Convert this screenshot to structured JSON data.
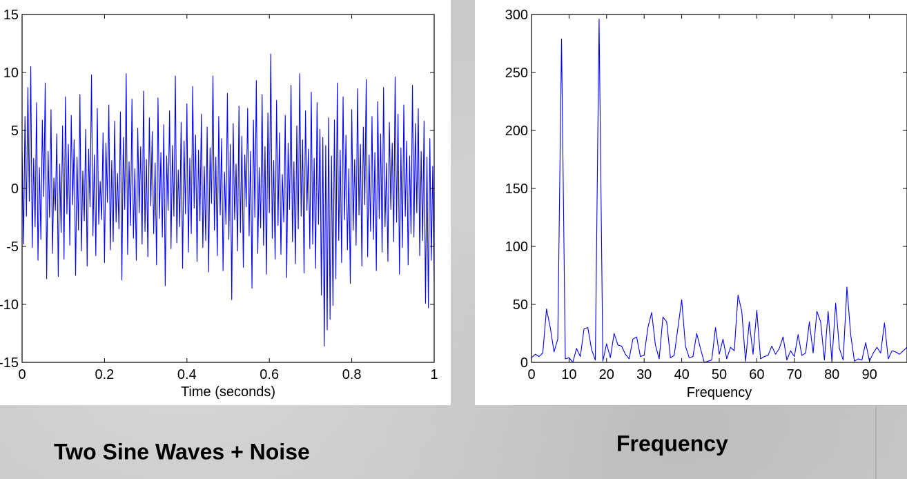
{
  "captions": {
    "left": "Two Sine Waves + Noise",
    "right": "Frequency"
  },
  "chart_data": [
    {
      "type": "line",
      "title": "",
      "xlabel": "Time (seconds)",
      "ylabel": "",
      "xlim": [
        0,
        1
      ],
      "ylim": [
        -15,
        15
      ],
      "x_ticks": [
        0,
        0.2,
        0.4,
        0.6,
        0.8,
        1
      ],
      "x_tick_labels": [
        "0",
        "0.2",
        "0.4",
        "0.6",
        "0.8",
        "1"
      ],
      "y_ticks": [
        -15,
        -10,
        -5,
        0,
        5,
        10,
        15
      ],
      "y_tick_labels": [
        "-15",
        "-10",
        "-5",
        "0",
        "5",
        "10",
        "15"
      ],
      "series": [
        {
          "color": "#0000ff",
          "x_start": 0,
          "x_end": 1,
          "values": [
            3.5,
            -4.8,
            6.2,
            -2.4,
            8.7,
            -1.1,
            10.5,
            -5.1,
            2.6,
            -3.3,
            7.4,
            -6.2,
            1.8,
            -4.4,
            5.9,
            -0.7,
            9.1,
            -7.8,
            3.2,
            -2.5,
            6.8,
            -5.6,
            0.9,
            -1.9,
            4.7,
            -7.6,
            2.1,
            -3.8,
            5.4,
            -6.1,
            7.9,
            -2.2,
            3.8,
            -4.9,
            6.3,
            -1.4,
            4.2,
            -7.5,
            2.7,
            -3.6,
            8.1,
            -5.4,
            1.5,
            -2.8,
            5.1,
            -6.7,
            3.4,
            -1.6,
            9.8,
            -4.1,
            2.9,
            -5.8,
            6.9,
            -3.1,
            0.6,
            -2.7,
            4.8,
            -6.4,
            3.9,
            -1.2,
            7.2,
            -5.3,
            2.4,
            -4.6,
            5.8,
            -2.9,
            1.3,
            -3.5,
            6.6,
            -7.9,
            4.4,
            -1.8,
            9.9,
            -5.7,
            2.3,
            -3.2,
            7.7,
            -4.3,
            1.7,
            -6.2,
            5.2,
            -2.1,
            3.6,
            -4.8,
            8.4,
            -3.7,
            2.5,
            -5.9,
            6.1,
            -1.5,
            4.9,
            -3.9,
            2.2,
            -6.6,
            7.8,
            -2.6,
            3.1,
            -4.2,
            5.5,
            -8.4,
            2.8,
            -1.9,
            6.7,
            -5.2,
            3.7,
            -2.4,
            9.7,
            -4.7,
            1.6,
            -3.3,
            5.7,
            -6.9,
            4.1,
            -2.2,
            7.3,
            -5.5,
            2.6,
            -3.9,
            8.8,
            -1.7,
            4.6,
            -6.3,
            3.3,
            -2.8,
            6.4,
            -5.1,
            1.9,
            -4.5,
            5.3,
            -7.2,
            3.5,
            -1.3,
            9.7,
            -3.6,
            2.7,
            -5.8,
            6.2,
            -2.3,
            4.3,
            -7.1,
            1.4,
            -3.1,
            8.2,
            -4.4,
            3.8,
            -9.6,
            5.6,
            -2.7,
            2.1,
            -5.4,
            7.1,
            -3.8,
            4.5,
            -6.8,
            2.9,
            -1.6,
            6.9,
            -4.1,
            3.2,
            -8.6,
            5.9,
            -2.5,
            9.3,
            -5.6,
            1.8,
            -3.4,
            8.1,
            -4.9,
            3.6,
            -7.4,
            6.5,
            -2.1,
            11.6,
            -4.3,
            2.4,
            -6.1,
            7.6,
            -3.2,
            4.8,
            -5.7,
            1.2,
            -2.9,
            6.3,
            -7.7,
            3.9,
            -1.8,
            8.9,
            -4.6,
            2.3,
            -6.5,
            5.4,
            -3.5,
            9.9,
            -2.4,
            4.2,
            -7.3,
            6.7,
            -1.9,
            3.4,
            -5.2,
            8.3,
            -4.8,
            2.6,
            -6.9,
            7.4,
            -3.1,
            5.1,
            -9.2,
            4.4,
            -13.6,
            3.7,
            -12.2,
            6.1,
            -11.3,
            2.8,
            -10.1,
            5.9,
            -7.8,
            9.1,
            -4.5,
            3.3,
            -6.4,
            7.9,
            -2.7,
            4.6,
            -5.3,
            1.7,
            -8.2,
            6.8,
            -3.6,
            2.5,
            -4.9,
            8.6,
            -2.3,
            3.8,
            -6.7,
            5.3,
            -1.4,
            9.4,
            -5.9,
            2.9,
            -3.7,
            6.2,
            -4.4,
            3.1,
            -7.1,
            7.5,
            -2.6,
            4.7,
            -5.5,
            8.7,
            -3.3,
            2.2,
            -6.3,
            5.7,
            -1.8,
            3.9,
            -4.6,
            9.6,
            -2.9,
            6.4,
            -7.4,
            3.5,
            -5.1,
            7.2,
            -2.4,
            4.1,
            -6.6,
            2.8,
            -3.9,
            8.9,
            -4.2,
            5.6,
            -2.1,
            6.9,
            -5.8,
            3.2,
            -4.5,
            5.8,
            -9.9,
            2.7,
            -10.3,
            4.3,
            -6.2,
            1.9,
            -8.1
          ]
        }
      ]
    },
    {
      "type": "line",
      "title": "",
      "xlabel": "Frequency",
      "ylabel": "",
      "xlim": [
        0,
        100
      ],
      "ylim": [
        0,
        300
      ],
      "x_ticks": [
        0,
        10,
        20,
        30,
        40,
        50,
        60,
        70,
        80,
        90
      ],
      "x_tick_labels": [
        "0",
        "10",
        "20",
        "30",
        "40",
        "50",
        "60",
        "70",
        "80",
        "90"
      ],
      "y_ticks": [
        0,
        50,
        100,
        150,
        200,
        250,
        300
      ],
      "y_tick_labels": [
        "0",
        "50",
        "100",
        "150",
        "200",
        "250",
        "300"
      ],
      "series": [
        {
          "color": "#0000ff",
          "x": [
            0,
            1,
            2,
            3,
            4,
            5,
            6,
            7,
            8,
            9,
            10,
            11,
            12,
            13,
            14,
            15,
            16,
            17,
            18,
            19,
            20,
            21,
            22,
            23,
            24,
            25,
            26,
            27,
            28,
            29,
            30,
            31,
            32,
            33,
            34,
            35,
            36,
            37,
            38,
            39,
            40,
            41,
            42,
            43,
            44,
            45,
            46,
            47,
            48,
            49,
            50,
            51,
            52,
            53,
            54,
            55,
            56,
            57,
            58,
            59,
            60,
            61,
            62,
            63,
            64,
            65,
            66,
            67,
            68,
            69,
            70,
            71,
            72,
            73,
            74,
            75,
            76,
            77,
            78,
            79,
            80,
            81,
            82,
            83,
            84,
            85,
            86,
            87,
            88,
            89,
            90,
            91,
            92,
            93,
            94,
            95,
            96,
            97,
            98,
            99,
            100
          ],
          "values": [
            4,
            7,
            5,
            8,
            46,
            30,
            9,
            20,
            279,
            3,
            4,
            0,
            12,
            5,
            29,
            30,
            11,
            2,
            296,
            1,
            16,
            4,
            25,
            15,
            14,
            7,
            3,
            20,
            22,
            5,
            6,
            30,
            43,
            15,
            3,
            39,
            35,
            4,
            6,
            30,
            54,
            14,
            4,
            5,
            25,
            12,
            0,
            1,
            2,
            30,
            7,
            20,
            3,
            13,
            10,
            58,
            44,
            1,
            35,
            7,
            45,
            3,
            5,
            6,
            14,
            7,
            12,
            22,
            2,
            10,
            5,
            24,
            6,
            8,
            35,
            8,
            44,
            35,
            2,
            44,
            1,
            51,
            12,
            2,
            65,
            24,
            1,
            3,
            2,
            17,
            1,
            8,
            13,
            8,
            34,
            3,
            10,
            9,
            7,
            10,
            13
          ]
        }
      ]
    }
  ]
}
